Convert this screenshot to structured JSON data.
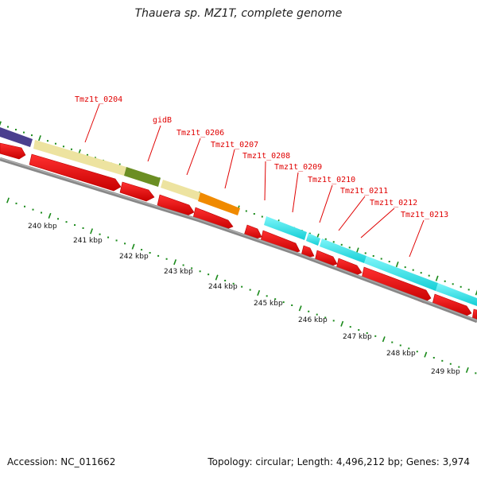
{
  "header": {
    "title": "Thauera sp. MZ1T, complete genome"
  },
  "footer": {
    "accession": "Accession: NC_011662",
    "summary": "Topology: circular; Length: 4,496,212 bp; Genes: 3,974"
  },
  "colors": {
    "gene_red": "#ee0000",
    "gene_dark_red": "#b80000",
    "feature_blue": "#4a3f8e",
    "feature_pale_yellow": "#ede3a0",
    "feature_olive": "#6b8e23",
    "feature_orange": "#f08a00",
    "feature_cyan": "#22e8ee",
    "backbone": "#888888",
    "tick_green": "#1a8a1a",
    "label_red": "#e00000"
  },
  "gene_labels": [
    "Tmz1t_0204",
    "gidB",
    "Tmz1t_0206",
    "Tmz1t_0207",
    "Tmz1t_0208",
    "Tmz1t_0209",
    "Tmz1t_0210",
    "Tmz1t_0211",
    "Tmz1t_0212",
    "Tmz1t_0213"
  ],
  "scale_labels": [
    "240 kbp",
    "241 kbp",
    "242 kbp",
    "243 kbp",
    "244 kbp",
    "245 kbp",
    "246 kbp",
    "247 kbp",
    "248 kbp",
    "249 kbp"
  ]
}
